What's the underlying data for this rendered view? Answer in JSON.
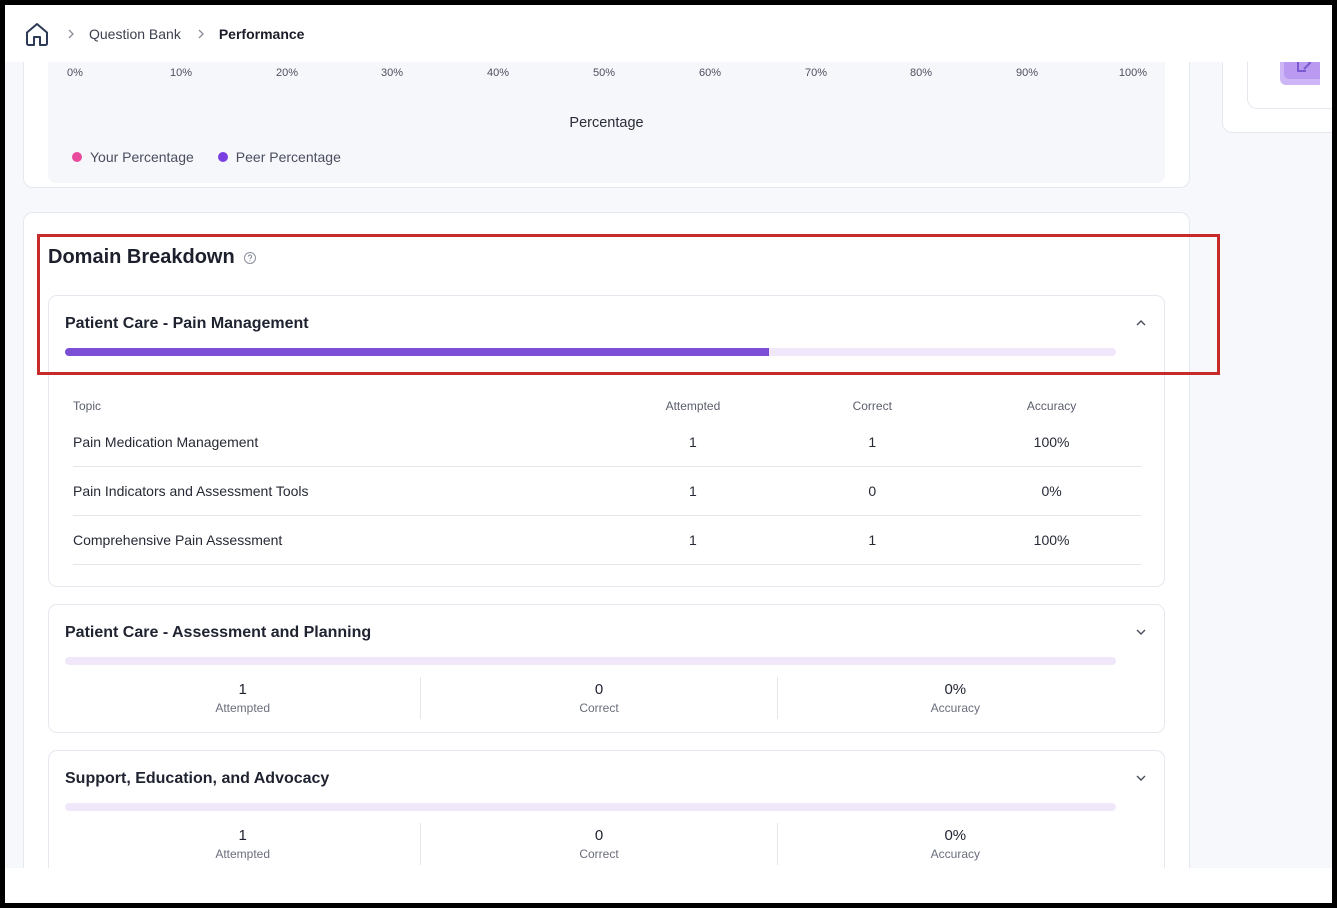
{
  "breadcrumb": {
    "home_icon": "home-icon",
    "items": [
      "Question Bank",
      "Performance"
    ]
  },
  "chart": {
    "ticks": [
      "0%",
      "10%",
      "20%",
      "30%",
      "40%",
      "50%",
      "60%",
      "70%",
      "80%",
      "90%",
      "100%"
    ],
    "xlabel": "Percentage",
    "legend": [
      {
        "label": "Your Percentage",
        "color": "#e84a9c"
      },
      {
        "label": "Peer Percentage",
        "color": "#7a3fe0"
      }
    ]
  },
  "domain_breakdown": {
    "title": "Domain Breakdown",
    "help_icon": "help-circle-icon",
    "domains": [
      {
        "name": "Patient Care - Pain Management",
        "expanded": true,
        "progress": 0.67,
        "table": {
          "headers": [
            "Topic",
            "Attempted",
            "Correct",
            "Accuracy"
          ],
          "rows": [
            [
              "Pain Medication Management",
              "1",
              "1",
              "100%"
            ],
            [
              "Pain Indicators and Assessment Tools",
              "1",
              "0",
              "0%"
            ],
            [
              "Comprehensive Pain Assessment",
              "1",
              "1",
              "100%"
            ]
          ]
        }
      },
      {
        "name": "Patient Care - Assessment and Planning",
        "expanded": false,
        "progress": 0,
        "stats": [
          {
            "value": "1",
            "label": "Attempted"
          },
          {
            "value": "0",
            "label": "Correct"
          },
          {
            "value": "0%",
            "label": "Accuracy"
          }
        ]
      },
      {
        "name": "Support, Education, and Advocacy",
        "expanded": false,
        "progress": 0,
        "stats": [
          {
            "value": "1",
            "label": "Attempted"
          },
          {
            "value": "0",
            "label": "Correct"
          },
          {
            "value": "0%",
            "label": "Accuracy"
          }
        ]
      }
    ]
  },
  "colors": {
    "accent": "#7a4fd6",
    "track": "#f0e8fa",
    "highlight": "#c72a2a"
  }
}
